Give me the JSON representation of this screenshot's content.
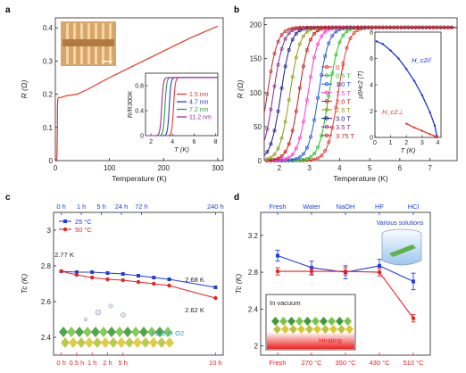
{
  "figure": {
    "panel_labels": [
      "a",
      "b",
      "c",
      "d"
    ]
  },
  "chart_data": [
    {
      "panel": "a",
      "type": "line",
      "xlabel": "Temperature (K)",
      "ylabel": "R (Ω)",
      "xlim": [
        0,
        310
      ],
      "ylim": [
        0,
        0.43
      ],
      "xticks": [
        0,
        100,
        200,
        300
      ],
      "yticks": [
        0.0,
        0.1,
        0.2,
        0.3,
        0.4
      ],
      "series": [
        {
          "color": "#e8372b",
          "x": [
            2,
            3,
            3.6,
            4,
            4.5,
            6,
            10,
            20,
            40,
            60,
            100,
            150,
            200,
            250,
            300
          ],
          "y": [
            0.0,
            0.01,
            0.08,
            0.16,
            0.185,
            0.19,
            0.19,
            0.195,
            0.2,
            0.215,
            0.25,
            0.29,
            0.33,
            0.37,
            0.405
          ]
        }
      ],
      "inset": {
        "type": "line",
        "xlabel": "T (K)",
        "ylabel": "R/R300K",
        "xlim": [
          1.5,
          8.2
        ],
        "ylim": [
          0,
          1.0
        ],
        "xticks": [
          2,
          4,
          6,
          8
        ],
        "yticks": [
          0.0,
          0.4,
          0.8
        ],
        "legend_position": "bottom-right",
        "series": [
          {
            "name": "1.5 nm",
            "color": "#e8372b",
            "Tc": 4.1
          },
          {
            "name": "4.7 nm",
            "color": "#2a3fd8",
            "Tc": 3.7
          },
          {
            "name": "7.2 nm",
            "color": "#2e9e3e",
            "Tc": 3.3
          },
          {
            "name": "11.2 nm",
            "color": "#a0289a",
            "Tc": 3.0
          }
        ]
      }
    },
    {
      "panel": "b",
      "type": "line",
      "xlabel": "Temperature (K)",
      "ylabel": "R (Ω)",
      "xlim": [
        1.5,
        7.9
      ],
      "ylim": [
        0,
        210
      ],
      "xticks": [
        2,
        3,
        4,
        5,
        6,
        7
      ],
      "yticks": [
        0,
        50,
        100,
        150,
        200
      ],
      "legend_position": "center",
      "series": [
        {
          "name": "0 T",
          "color": "#e8372b",
          "Tc": 3.95
        },
        {
          "name": "0.5 T",
          "color": "#22c422",
          "Tc": 3.65
        },
        {
          "name": "1.0 T",
          "color": "#2255dd",
          "Tc": 3.3
        },
        {
          "name": "1.5 T",
          "color": "#ff33cc",
          "Tc": 2.95
        },
        {
          "name": "2.0 T",
          "color": "#c01818",
          "Tc": 2.65
        },
        {
          "name": "2.5 T",
          "color": "#8a9a18",
          "Tc": 2.35
        },
        {
          "name": "3.0 T",
          "color": "#1a1a8c",
          "Tc": 2.05
        },
        {
          "name": "3.5 T",
          "color": "#8a2a8a",
          "Tc": 1.8
        },
        {
          "name": "3.75 T",
          "color": "#c02828",
          "Tc": 1.6
        }
      ],
      "inset": {
        "type": "line",
        "xlabel": "T (K)",
        "ylabel": "μ0Hc2 (T)",
        "xlim": [
          0,
          4.2
        ],
        "ylim": [
          0,
          8
        ],
        "xticks": [
          0,
          1,
          2,
          3,
          4
        ],
        "yticks": [
          0,
          2,
          4,
          6,
          8
        ],
        "series": [
          {
            "name": "H_c2//",
            "color": "#2233cc",
            "x": [
              0.1,
              0.5,
              1.0,
              1.5,
              2.0,
              2.5,
              3.0,
              3.5,
              3.8,
              3.95
            ],
            "y": [
              7.3,
              7.1,
              6.6,
              6.0,
              5.2,
              4.3,
              3.2,
              1.9,
              0.9,
              0.0
            ]
          },
          {
            "name": "H_c2⊥",
            "color": "#e8372b",
            "x": [
              2.0,
              2.5,
              3.0,
              3.5,
              3.8,
              3.95
            ],
            "y": [
              1.05,
              0.75,
              0.5,
              0.25,
              0.1,
              0.0
            ]
          }
        ]
      }
    },
    {
      "panel": "c",
      "type": "line",
      "xlabel": "",
      "ylabel": "Tc (K)",
      "ylim": [
        2.3,
        3.1
      ],
      "yticks": [
        2.4,
        2.6,
        2.8,
        3.0
      ],
      "categories_bottom": [
        "0 h",
        "0.5 h",
        "1 h",
        "2 h",
        "5 h",
        "10 h"
      ],
      "categories_top": [
        "0 h",
        "1 h",
        "5 h",
        "24 h",
        "72 h",
        "240 h"
      ],
      "legend_position": "top-left",
      "series": [
        {
          "name": "25 °C",
          "color": "#1f3ee0",
          "x": [
            0,
            1,
            2,
            3,
            4,
            5,
            6,
            7,
            10
          ],
          "y": [
            2.77,
            2.765,
            2.765,
            2.76,
            2.755,
            2.745,
            2.735,
            2.725,
            2.68
          ]
        },
        {
          "name": "50 °C",
          "color": "#e8231f",
          "x": [
            0,
            1,
            2,
            3,
            4,
            5,
            6,
            7,
            10
          ],
          "y": [
            2.77,
            2.75,
            2.735,
            2.725,
            2.72,
            2.71,
            2.7,
            2.69,
            2.62
          ]
        }
      ],
      "annotations": [
        "2.77 K",
        "2.68 K",
        "2.62 K",
        "H2O or O2"
      ]
    },
    {
      "panel": "d",
      "type": "scatter",
      "xlabel": "",
      "ylabel": "Tc (K)",
      "ylim": [
        1.9,
        3.45
      ],
      "yticks": [
        2.0,
        2.4,
        2.8,
        3.2
      ],
      "categories_bottom": [
        "Fresh",
        "270 °C",
        "350 °C",
        "430 °C",
        "510 °C"
      ],
      "categories_top": [
        "Fresh",
        "Water",
        "NaOH",
        "HF",
        "HCl"
      ],
      "series": [
        {
          "name": "Various solutions",
          "color": "#1f3ee0",
          "values": [
            2.98,
            2.85,
            2.8,
            2.87,
            2.7
          ],
          "errors": [
            0.06,
            0.07,
            0.07,
            0.07,
            0.09
          ]
        },
        {
          "name": "Heating",
          "color": "#e8231f",
          "values": [
            2.81,
            2.81,
            2.81,
            2.8,
            2.3
          ],
          "errors": [
            0.04,
            0.04,
            0.04,
            0.04,
            0.04
          ]
        }
      ],
      "annotations": [
        "Various solutions",
        "In vacuum",
        "Heating"
      ]
    }
  ]
}
